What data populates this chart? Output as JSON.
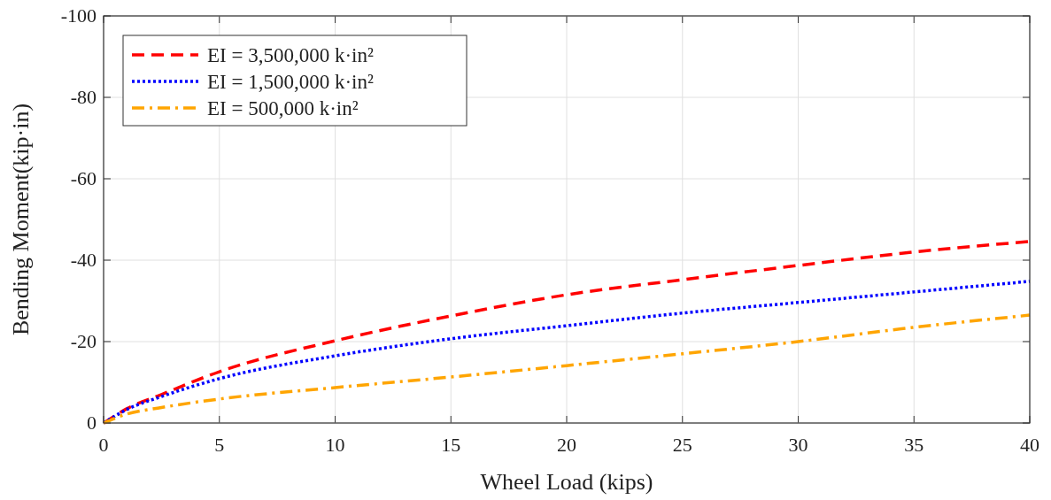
{
  "chart_data": {
    "type": "line",
    "xlabel": "Wheel Load (kips)",
    "ylabel": "Bending Moment(kip·in)",
    "x": [
      0,
      1,
      2.5,
      5,
      10,
      15,
      20,
      25,
      30,
      35,
      40
    ],
    "series": [
      {
        "name": "EI = 3,500,000 k·in²",
        "color": "#ff0000",
        "line_style": "dashed",
        "values": [
          0,
          -3.5,
          -7,
          -12.6,
          -20.2,
          -26.3,
          -31.5,
          -35.2,
          -38.7,
          -42,
          -44.6
        ]
      },
      {
        "name": "EI = 1,500,000 k·in²",
        "color": "#0000ff",
        "line_style": "dotted",
        "values": [
          0,
          -3.3,
          -6.5,
          -10.9,
          -16.5,
          -20.7,
          -23.9,
          -27,
          -29.6,
          -32.2,
          -34.8
        ]
      },
      {
        "name": "EI = 500,000 k·in²",
        "color": "#ffa500",
        "line_style": "dashdot",
        "values": [
          0,
          -2.2,
          -3.8,
          -5.9,
          -8.7,
          -11.3,
          -14.1,
          -17,
          -20,
          -23.5,
          -26.5
        ]
      }
    ],
    "xlim": [
      0,
      40
    ],
    "xticks": [
      0,
      5,
      10,
      15,
      20,
      25,
      30,
      35,
      40
    ],
    "ylim": [
      0,
      -100
    ],
    "yticks": [
      0,
      -20,
      -40,
      -60,
      -80,
      -100
    ],
    "grid": true,
    "legend": "top left",
    "marker": "none"
  }
}
